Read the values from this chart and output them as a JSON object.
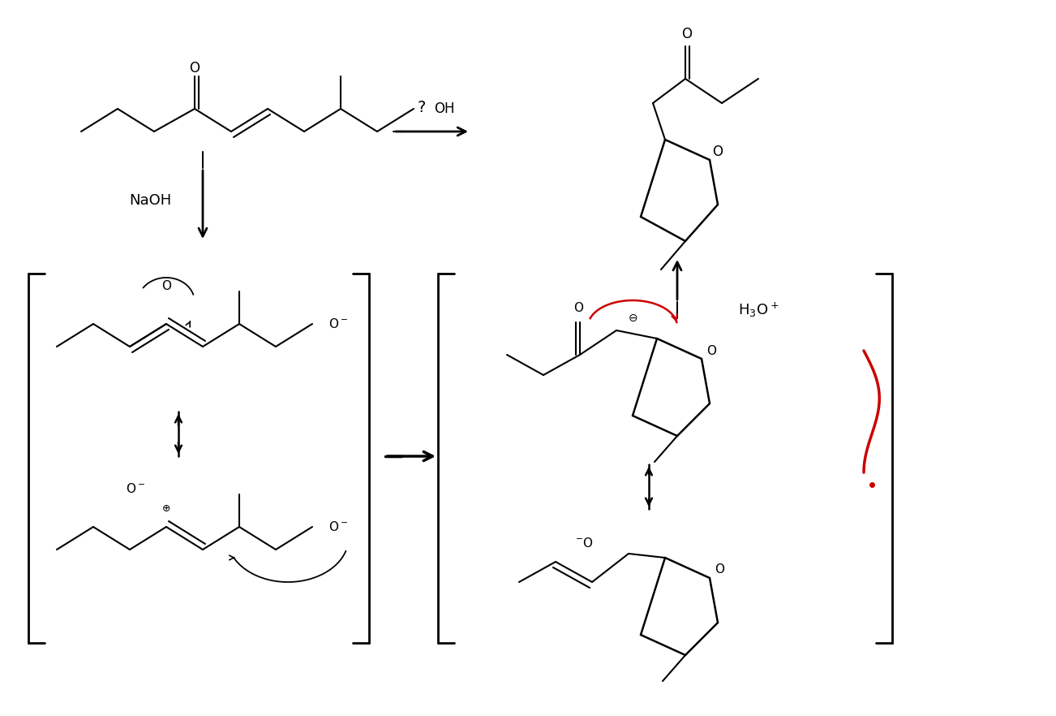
{
  "bg_color": "#ffffff",
  "line_color": "#000000",
  "red_color": "#cc0000",
  "fig_width": 13.02,
  "fig_height": 8.82,
  "title": "",
  "labels": {
    "naoh": "NaOH",
    "h3o": "H$_3$O$^+$",
    "question": "?",
    "OH": "OH",
    "O_label": "O",
    "O_minus1": "O$^-$",
    "O_minus2": "O$^-$",
    "O_minus3": "O$^-$",
    "O_minus4": "O$^-$",
    "O_minus5": "$^{-}$O",
    "O_minus6": "$^{\\ominus}$",
    "O_circle_minus": "$\\ominus$"
  }
}
